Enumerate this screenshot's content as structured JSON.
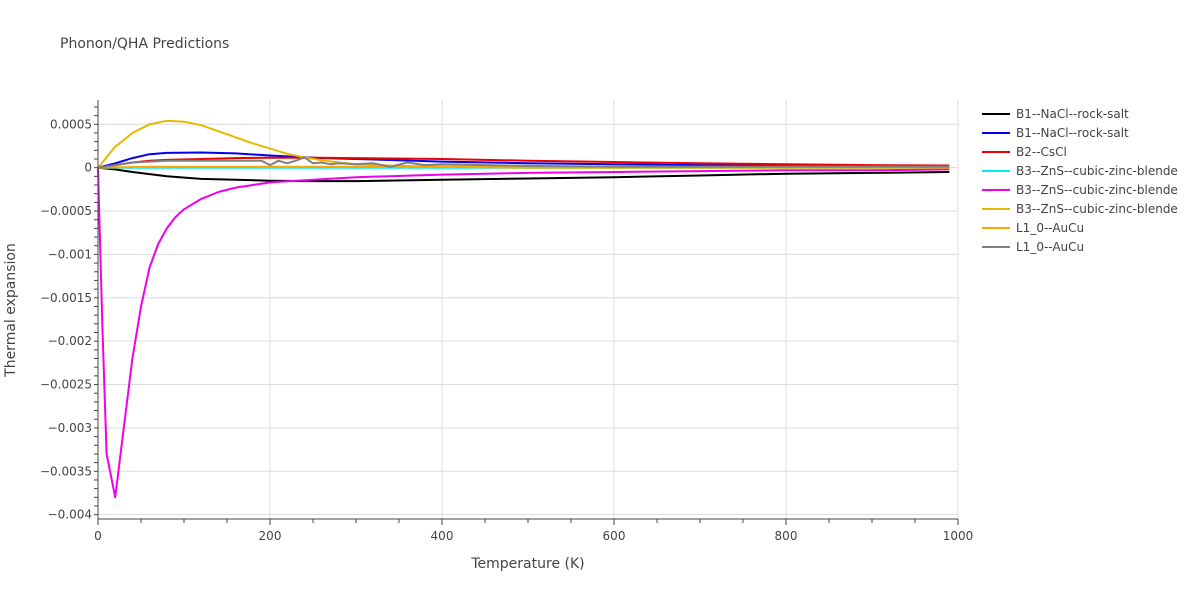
{
  "chart_data": {
    "type": "line",
    "title": "Phonon/QHA Predictions",
    "xlabel": "Temperature (K)",
    "ylabel": "Thermal expansion",
    "xlim": [
      0,
      1000
    ],
    "ylim": [
      -0.00405,
      0.00078
    ],
    "x_ticks": [
      0,
      200,
      400,
      600,
      800,
      1000
    ],
    "x_tick_labels": [
      "0",
      "200",
      "400",
      "600",
      "800",
      "1000"
    ],
    "y_ticks": [
      0.0005,
      0,
      -0.0005,
      -0.001,
      -0.0015,
      -0.002,
      -0.0025,
      -0.003,
      -0.0035,
      -0.004
    ],
    "y_tick_labels": [
      "0.0005",
      "0",
      "−0.0005",
      "−0.001",
      "−0.0015",
      "−0.002",
      "−0.0025",
      "−0.003",
      "−0.0035",
      "−0.004"
    ],
    "grid": true,
    "legend_position": "right",
    "series": [
      {
        "name": "B1--NaCl--rock-salt",
        "color": "#000000",
        "x": [
          0,
          20,
          40,
          80,
          120,
          160,
          200,
          250,
          300,
          400,
          500,
          600,
          700,
          800,
          900,
          990
        ],
        "y": [
          0,
          -2e-05,
          -5e-05,
          -0.0001,
          -0.00013,
          -0.00014,
          -0.00015,
          -0.000155,
          -0.000155,
          -0.00014,
          -0.000125,
          -0.00011,
          -9e-05,
          -7e-05,
          -6e-05,
          -5e-05
        ]
      },
      {
        "name": "B1--NaCl--rock-salt",
        "color": "#0000ee",
        "x": [
          0,
          20,
          40,
          60,
          80,
          120,
          160,
          200,
          250,
          300,
          400,
          500,
          600,
          700,
          800,
          900,
          990
        ],
        "y": [
          0,
          5e-05,
          0.00011,
          0.000155,
          0.00017,
          0.000175,
          0.000165,
          0.00014,
          0.000115,
          0.0001,
          7e-05,
          5e-05,
          4e-05,
          3e-05,
          2e-05,
          1e-05,
          5e-06
        ]
      },
      {
        "name": "B2--CsCl",
        "color": "#ee0000",
        "x": [
          0,
          20,
          40,
          60,
          80,
          120,
          160,
          200,
          250,
          300,
          400,
          500,
          600,
          700,
          800,
          900,
          990
        ],
        "y": [
          0,
          3e-05,
          6e-05,
          8e-05,
          9e-05,
          0.0001,
          0.00011,
          0.000115,
          0.000115,
          0.00011,
          0.0001,
          8e-05,
          6.5e-05,
          5e-05,
          4e-05,
          3e-05,
          2.5e-05
        ]
      },
      {
        "name": "B3--ZnS--cubic-zinc-blende",
        "color": "#00eeee",
        "x": [
          0,
          100,
          200,
          400,
          600,
          800,
          990
        ],
        "y": [
          0,
          0,
          0,
          0,
          0,
          0,
          0
        ]
      },
      {
        "name": "B3--ZnS--cubic-zinc-blende",
        "color": "#ee00ee",
        "x": [
          0,
          5,
          10,
          20,
          30,
          40,
          50,
          60,
          70,
          80,
          90,
          100,
          120,
          140,
          160,
          180,
          200,
          250,
          300,
          400,
          500,
          600,
          700,
          800,
          900,
          990
        ],
        "y": [
          0,
          -0.0018,
          -0.0033,
          -0.0038,
          -0.003,
          -0.0022,
          -0.0016,
          -0.00115,
          -0.00088,
          -0.0007,
          -0.00057,
          -0.00048,
          -0.00036,
          -0.00028,
          -0.00023,
          -0.0002,
          -0.00017,
          -0.00014,
          -0.00011,
          -8e-05,
          -6e-05,
          -5e-05,
          -4e-05,
          -3e-05,
          -3e-05,
          -2e-05
        ]
      },
      {
        "name": "B3--ZnS--cubic-zinc-blende",
        "color": "#e6b800",
        "x": [
          0,
          10,
          20,
          40,
          60,
          80,
          100,
          120,
          140,
          160,
          180,
          200,
          220,
          240,
          260,
          280,
          300,
          350,
          400,
          500,
          600,
          700,
          800,
          900,
          990
        ],
        "y": [
          0,
          0.00012,
          0.00024,
          0.0004,
          0.0005,
          0.00054,
          0.00053,
          0.00049,
          0.00042,
          0.00035,
          0.00028,
          0.00022,
          0.00016,
          0.00012,
          8.5e-05,
          6e-05,
          4e-05,
          2e-05,
          1e-05,
          0,
          0,
          0,
          0,
          0,
          0
        ]
      },
      {
        "name": "L1_0--AuCu",
        "color": "#ffa500",
        "x": [
          0,
          30,
          60,
          100,
          150,
          200,
          250,
          300,
          340,
          360,
          380,
          400,
          500,
          600,
          700,
          800,
          900,
          990
        ],
        "y": [
          0,
          5e-06,
          1e-05,
          1e-05,
          1e-05,
          1e-05,
          1e-05,
          1e-05,
          1e-05,
          1e-05,
          1e-05,
          1e-05,
          1e-05,
          1e-05,
          1e-05,
          1e-05,
          1e-05,
          1e-05
        ]
      },
      {
        "name": "L1_0--AuCu",
        "color": "#808080",
        "x": [
          0,
          20,
          40,
          60,
          80,
          100,
          120,
          140,
          160,
          180,
          190,
          200,
          210,
          220,
          230,
          240,
          250,
          260,
          270,
          280,
          300,
          320,
          340,
          360,
          380,
          400,
          450,
          500,
          600,
          700,
          800,
          900,
          990
        ],
        "y": [
          0,
          3e-05,
          6e-05,
          7e-05,
          8e-05,
          8e-05,
          8e-05,
          8e-05,
          8e-05,
          8e-05,
          8e-05,
          3e-05,
          8e-05,
          5e-05,
          8e-05,
          0.00012,
          5e-05,
          6e-05,
          4e-05,
          5e-05,
          4e-05,
          5e-05,
          1e-05,
          6e-05,
          3e-05,
          4e-05,
          3e-05,
          2e-05,
          1e-05,
          1e-05,
          1e-05,
          1e-05,
          1e-05
        ]
      }
    ]
  }
}
